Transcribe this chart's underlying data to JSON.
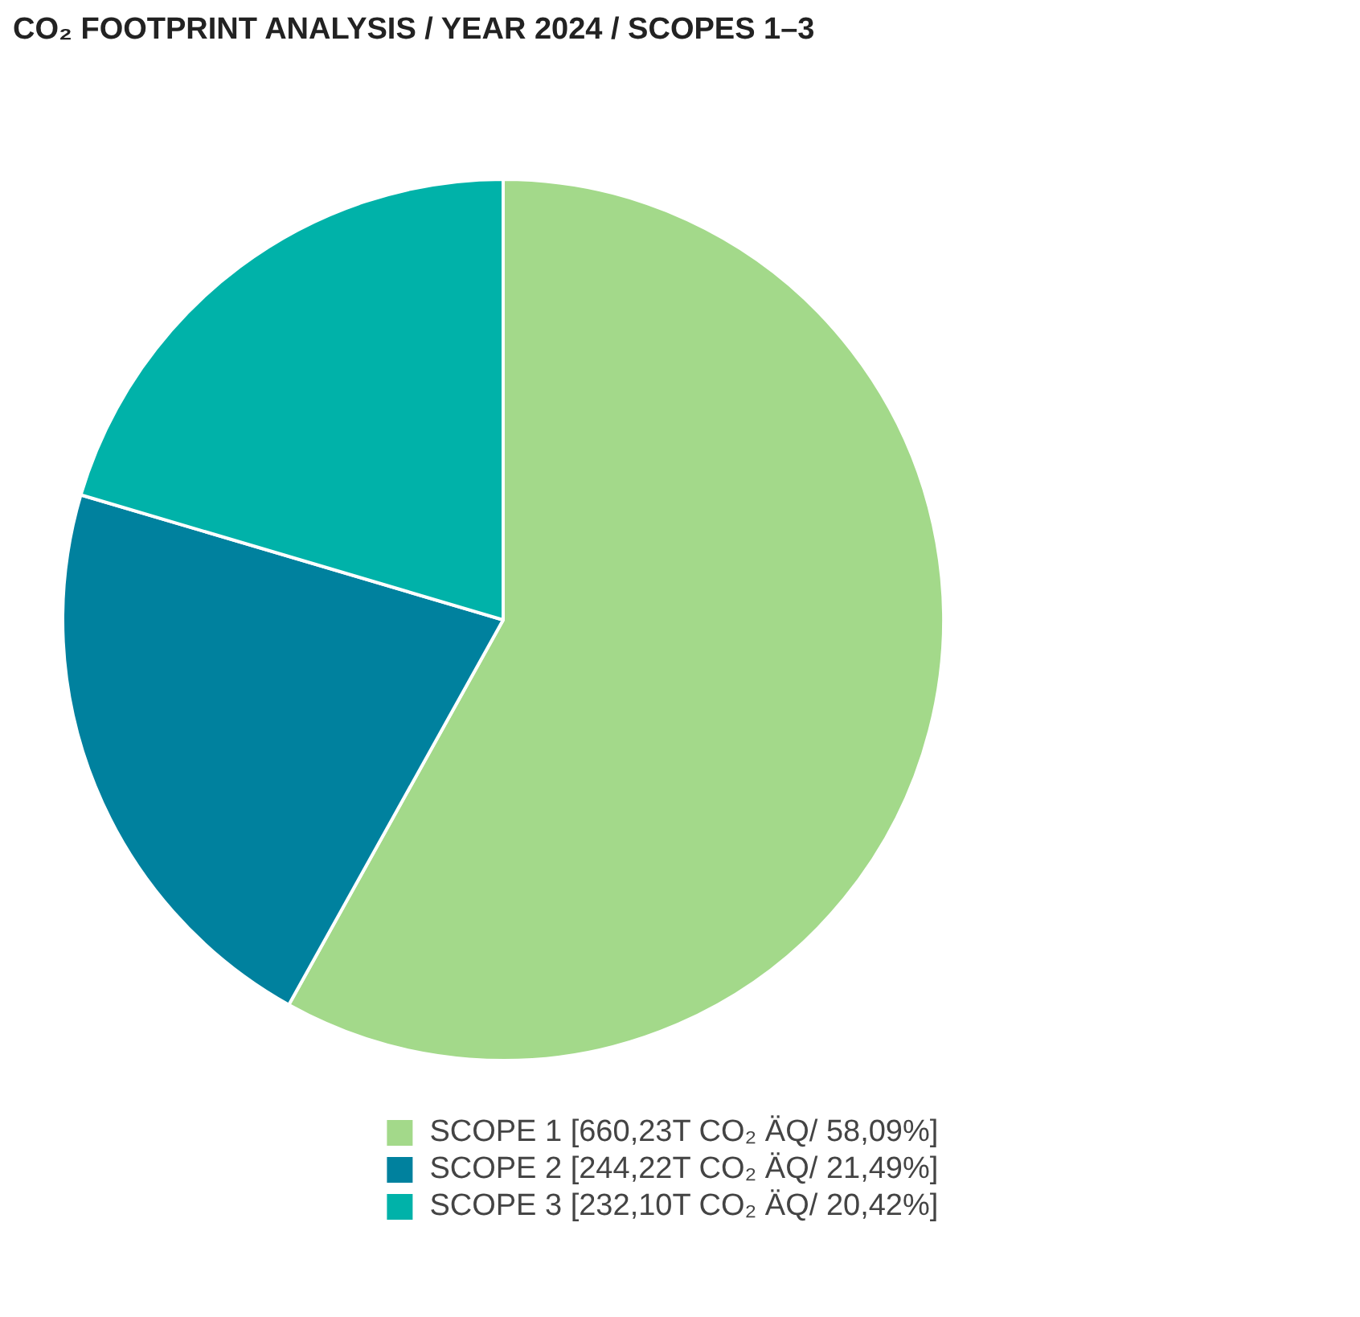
{
  "chart_data": {
    "type": "pie",
    "title": "CO₂ FOOTPRINT ANALYSIS / YEAR 2024 / SCOPES 1–3",
    "categories": [
      "SCOPE 1 [660,23T CO₂ ÄQ/ 58,09%]",
      "SCOPE 2 [244,22T CO₂ ÄQ/ 21,49%]",
      "SCOPE 3 [232,10T CO₂ ÄQ/ 20,42%]"
    ],
    "values": [
      58.09,
      21.49,
      20.42
    ],
    "colors": [
      "#a3d98a",
      "#00819e",
      "#00b2a9"
    ],
    "legend": "bottom right"
  }
}
